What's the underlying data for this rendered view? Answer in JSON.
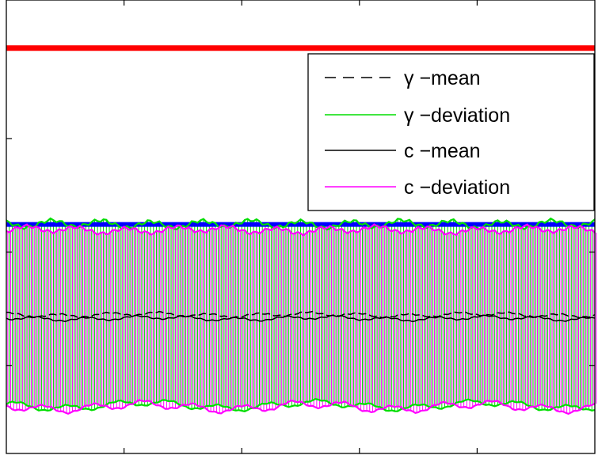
{
  "chart_data": {
    "type": "line",
    "title": "",
    "xlabel": "",
    "ylabel": "",
    "x_domain": [
      0,
      100
    ],
    "y_domain": [
      0,
      1
    ],
    "grid": false,
    "legend_position": "top-right",
    "reference_lines": [
      {
        "y": 0.894,
        "color": "#ff0000"
      },
      {
        "y": 0.505,
        "color": "#0000ff"
      }
    ],
    "series": [
      {
        "name": "γ −mean",
        "style": "dashed",
        "color": "#000000"
      },
      {
        "name": "γ −deviation",
        "style": "solid",
        "color": "#00dd00"
      },
      {
        "name": "c −mean",
        "style": "solid",
        "color": "#000000"
      },
      {
        "name": "c −deviation",
        "style": "solid",
        "color": "#ff00ff"
      }
    ],
    "band_gamma": {
      "mean": 0.306,
      "half_width": 0.2,
      "color": "#00dd00"
    },
    "band_c": {
      "mean": 0.298,
      "half_width": 0.195,
      "color": "#ff00ff"
    }
  }
}
